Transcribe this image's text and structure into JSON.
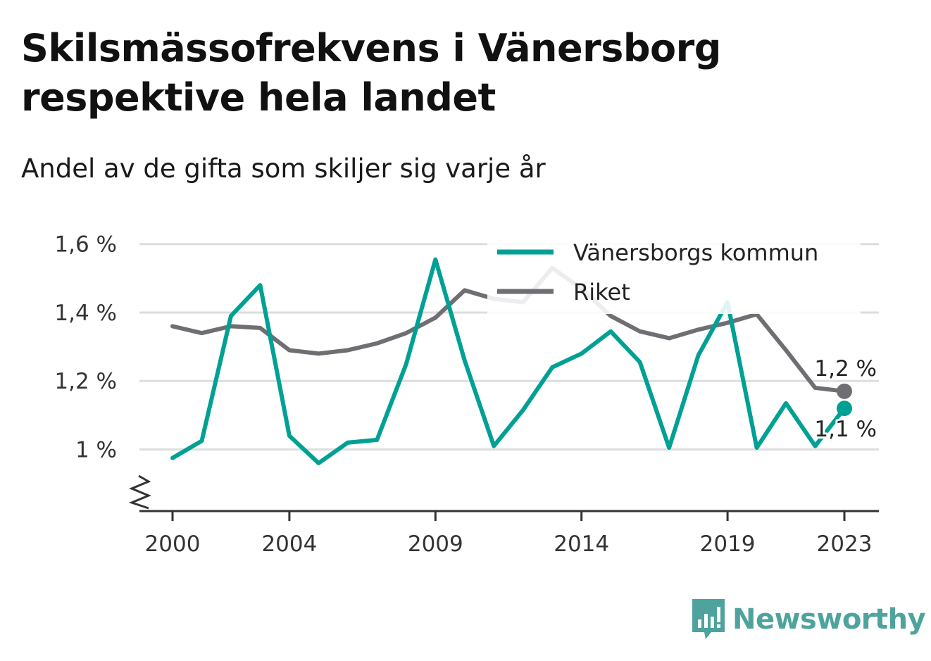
{
  "header": {
    "title": "Skilsmässofrekvens i Vänersborg respektive hela landet",
    "subtitle": "Andel av de gifta som skiljer sig varje år"
  },
  "brand": {
    "name": "Newsworthy",
    "color": "#4ea39d"
  },
  "chart_data": {
    "type": "line",
    "title": "Skilsmässofrekvens i Vänersborg respektive hela landet",
    "subtitle": "Andel av de gifta som skiljer sig varje år",
    "x": [
      2000,
      2001,
      2002,
      2003,
      2004,
      2005,
      2006,
      2007,
      2008,
      2009,
      2010,
      2011,
      2012,
      2013,
      2014,
      2015,
      2016,
      2017,
      2018,
      2019,
      2020,
      2021,
      2022,
      2023
    ],
    "x_ticks": [
      2000,
      2004,
      2009,
      2014,
      2019,
      2023
    ],
    "y_ticks": [
      1.0,
      1.2,
      1.4,
      1.6
    ],
    "y_tick_labels": [
      "1 %",
      "1,2 %",
      "1,4 %",
      "1,6 %"
    ],
    "ylim": [
      0.82,
      1.62
    ],
    "axis_break": true,
    "grid": "horizontal",
    "legend_position": "top-right",
    "series": [
      {
        "name": "Vänersborgs kommun",
        "color": "#00a094",
        "values": [
          0.975,
          1.025,
          1.39,
          1.48,
          1.04,
          0.96,
          1.02,
          1.028,
          1.25,
          1.555,
          1.26,
          1.01,
          1.115,
          1.24,
          1.28,
          1.345,
          1.255,
          1.005,
          1.275,
          1.43,
          1.005,
          1.135,
          1.01,
          1.12
        ],
        "end_label": "1,1 %"
      },
      {
        "name": "Riket",
        "color": "#6e6e73",
        "values": [
          1.36,
          1.34,
          1.36,
          1.355,
          1.29,
          1.28,
          1.29,
          1.31,
          1.34,
          1.385,
          1.465,
          1.44,
          1.43,
          1.53,
          1.47,
          1.39,
          1.345,
          1.325,
          1.35,
          1.37,
          1.395,
          1.29,
          1.18,
          1.17
        ],
        "end_label": "1,2 %"
      }
    ]
  }
}
